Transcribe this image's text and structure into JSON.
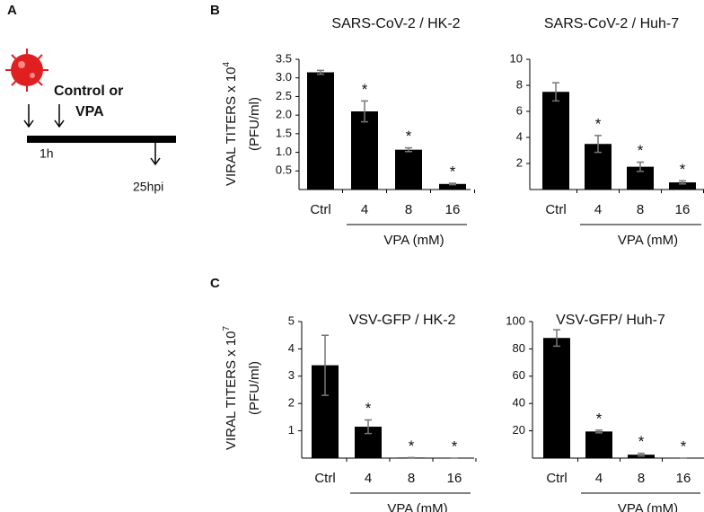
{
  "figure": {
    "panel_labels": [
      "A",
      "B",
      "C"
    ],
    "timeline": {
      "treatment_lines": [
        "Control or",
        "VPA"
      ],
      "start_label": "1h",
      "end_label": "25hpi"
    }
  },
  "chart_data": [
    {
      "type": "bar",
      "title": "SARS-CoV-2 / HK-2",
      "ylabel": "VIRAL TITERS x 10",
      "ylabel_exponent": "4",
      "ylabel_unit": "(PFU/ml)",
      "categories": [
        "Ctrl",
        "4",
        "8",
        "16"
      ],
      "x_group_label": "VPA (mM)",
      "values": [
        3.15,
        2.1,
        1.07,
        0.15
      ],
      "errors": [
        0.05,
        0.28,
        0.05,
        0.02
      ],
      "significance": [
        null,
        "*",
        "*",
        "*"
      ],
      "color": "#000000",
      "ylim": [
        0,
        3.5
      ],
      "yticks": [
        0.5,
        {
          "value": 1,
          "label": "1.0"
        },
        1.5,
        {
          "value": 2,
          "label": "2.0"
        },
        2.5,
        {
          "value": 3,
          "label": "3.0"
        },
        3.5
      ]
    },
    {
      "type": "bar",
      "title": "SARS-CoV-2 / Huh-7",
      "categories": [
        "Ctrl",
        "4",
        "8",
        "16"
      ],
      "x_group_label": "VPA (mM)",
      "values": [
        7.5,
        3.5,
        1.75,
        0.55
      ],
      "errors": [
        0.7,
        0.65,
        0.35,
        0.12
      ],
      "significance": [
        null,
        "*",
        "*",
        "*"
      ],
      "color": "#000000",
      "ylim": [
        0,
        10
      ],
      "yticks": [
        2,
        4,
        6,
        8,
        10
      ]
    },
    {
      "type": "bar",
      "title": "VSV-GFP / HK-2",
      "ylabel": "VIRAL TITERS x 10",
      "ylabel_exponent": "7",
      "ylabel_unit": "(PFU/ml)",
      "categories": [
        "Ctrl",
        "4",
        "8",
        "16"
      ],
      "x_group_label": "VPA (mM)",
      "values": [
        3.4,
        1.15,
        0.02,
        0
      ],
      "errors": [
        1.1,
        0.25,
        0,
        0
      ],
      "significance": [
        null,
        "*",
        "*",
        "*"
      ],
      "color": "#000000",
      "ylim": [
        0,
        5
      ],
      "yticks": [
        1,
        2,
        3,
        4,
        5
      ]
    },
    {
      "type": "bar",
      "title": "VSV-GFP/ Huh-7",
      "categories": [
        "Ctrl",
        "4",
        "8",
        "16"
      ],
      "x_group_label": "VPA (mM)",
      "values": [
        88,
        19.5,
        2.5,
        0
      ],
      "errors": [
        6,
        1,
        1,
        0
      ],
      "significance": [
        null,
        "*",
        "*",
        "*"
      ],
      "color": "#000000",
      "ylim": [
        0,
        100
      ],
      "yticks": [
        20,
        40,
        60,
        80,
        100
      ]
    }
  ]
}
